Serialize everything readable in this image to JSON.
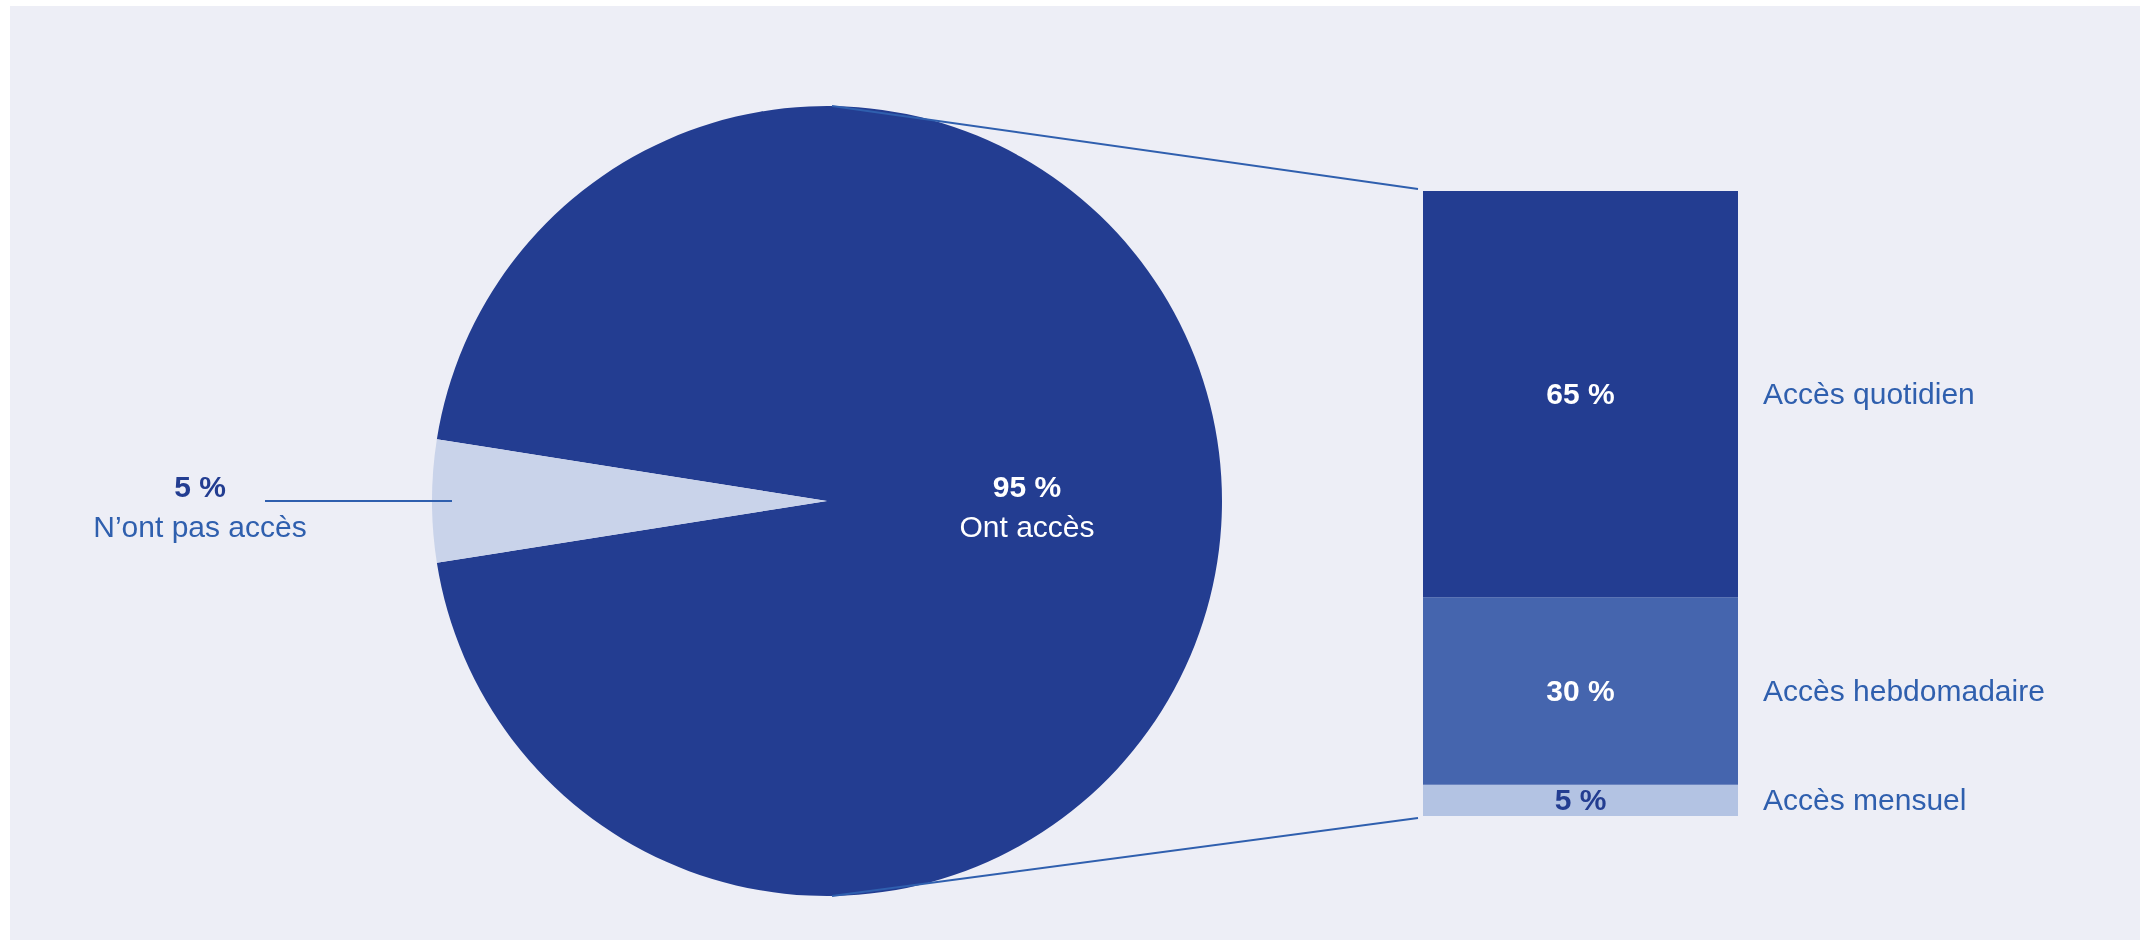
{
  "chart_data": [
    {
      "type": "pie",
      "categories": [
        "Ont accès",
        "N’ont pas accès"
      ],
      "values": [
        95,
        5
      ],
      "colors": [
        "#233d91",
        "#c9d3ea"
      ],
      "value_labels": [
        "95 %",
        "5 %"
      ]
    },
    {
      "type": "bar",
      "stacked": true,
      "categories": [
        null
      ],
      "series": [
        {
          "name": "Accès mensuel",
          "color": "#b3c3e3",
          "values": [
            5
          ],
          "value_labels": [
            "5 %"
          ]
        },
        {
          "name": "Accès hebdomadaire",
          "color": "#4565ae",
          "values": [
            30
          ],
          "value_labels": [
            "30 %"
          ]
        },
        {
          "name": "Accès quotidien",
          "color": "#233d91",
          "values": [
            65
          ],
          "value_labels": [
            "65 %"
          ]
        }
      ]
    }
  ]
}
